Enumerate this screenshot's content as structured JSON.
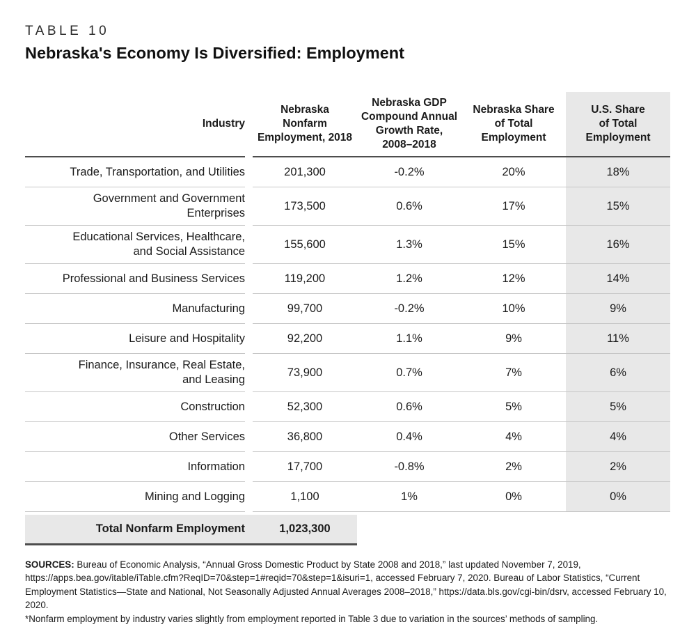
{
  "header": {
    "table_number": "TABLE 10",
    "title": "Nebraska's Economy Is Diversified: Employment"
  },
  "table": {
    "columns": {
      "industry": "Industry",
      "employment": "Nebraska\nNonfarm\nEmployment, 2018",
      "cagr": "Nebraska GDP\nCompound Annual\nGrowth Rate,\n2008–2018",
      "ne_share": "Nebraska Share\nof Total\nEmployment",
      "us_share": "U.S. Share\nof Total\nEmployment"
    },
    "rows": [
      {
        "industry": "Trade, Transportation, and Utilities",
        "employment": "201,300",
        "cagr": "-0.2%",
        "ne_share": "20%",
        "us_share": "18%"
      },
      {
        "industry": "Government and Government\nEnterprises",
        "employment": "173,500",
        "cagr": "0.6%",
        "ne_share": "17%",
        "us_share": "15%"
      },
      {
        "industry": "Educational Services, Healthcare,\nand Social Assistance",
        "employment": "155,600",
        "cagr": "1.3%",
        "ne_share": "15%",
        "us_share": "16%"
      },
      {
        "industry": "Professional and Business Services",
        "employment": "119,200",
        "cagr": "1.2%",
        "ne_share": "12%",
        "us_share": "14%"
      },
      {
        "industry": "Manufacturing",
        "employment": "99,700",
        "cagr": "-0.2%",
        "ne_share": "10%",
        "us_share": "9%"
      },
      {
        "industry": "Leisure and Hospitality",
        "employment": "92,200",
        "cagr": "1.1%",
        "ne_share": "9%",
        "us_share": "11%"
      },
      {
        "industry": "Finance, Insurance, Real Estate,\nand Leasing",
        "employment": "73,900",
        "cagr": "0.7%",
        "ne_share": "7%",
        "us_share": "6%"
      },
      {
        "industry": "Construction",
        "employment": "52,300",
        "cagr": "0.6%",
        "ne_share": "5%",
        "us_share": "5%"
      },
      {
        "industry": "Other Services",
        "employment": "36,800",
        "cagr": "0.4%",
        "ne_share": "4%",
        "us_share": "4%"
      },
      {
        "industry": "Information",
        "employment": "17,700",
        "cagr": "-0.8%",
        "ne_share": "2%",
        "us_share": "2%"
      },
      {
        "industry": "Mining and Logging",
        "employment": "1,100",
        "cagr": "1%",
        "ne_share": "0%",
        "us_share": "0%"
      }
    ],
    "total": {
      "label": "Total Nonfarm Employment",
      "value": "1,023,300"
    }
  },
  "footer": {
    "sources_label": "SOURCES:",
    "sources_text": " Bureau of Economic Analysis, “Annual Gross Domestic Product by State 2008 and 2018,” last updated November 7, 2019, https://apps.bea.gov/itable/iTable.cfm?ReqID=70&step=1#reqid=70&step=1&isuri=1, accessed February 7, 2020. Bureau of Labor Statistics, “Current Employment Statistics—State and National, Not Seasonally Adjusted Annual Averages 2008–2018,” https://data.bls.gov/cgi-bin/dsrv, accessed February 10, 2020.",
    "footnote": "*Nonfarm employment by industry varies slightly from employment reported in Table 3 due to variation in the sources’ methods of sampling."
  },
  "colors": {
    "shaded_column": "#e8e8e8",
    "dark_border": "#4d4d4d",
    "row_separator": "#c6c6c6",
    "text": "#1b1b1b"
  }
}
